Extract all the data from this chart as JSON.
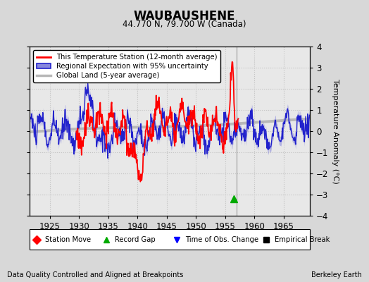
{
  "title": "WAUBAUSHENE",
  "subtitle": "44.770 N, 79.700 W (Canada)",
  "ylabel": "Temperature Anomaly (°C)",
  "xlabel_note": "Data Quality Controlled and Aligned at Breakpoints",
  "credit": "Berkeley Earth",
  "xlim": [
    1921.5,
    1969.5
  ],
  "ylim": [
    -4,
    4
  ],
  "yticks": [
    -4,
    -3,
    -2,
    -1,
    0,
    1,
    2,
    3,
    4
  ],
  "xticks": [
    1925,
    1930,
    1935,
    1940,
    1945,
    1950,
    1955,
    1960,
    1965
  ],
  "bg_color": "#d8d8d8",
  "plot_bg_color": "#e8e8e8",
  "grid_color": "#c0c0c0",
  "station_color": "red",
  "regional_color": "#2222cc",
  "regional_fill_color": "#8888dd",
  "global_color": "#b8b8b8",
  "vertical_line_x": 1957.0,
  "marker_green_triangle_x": 1956.5,
  "marker_green_triangle_y": -3.2
}
